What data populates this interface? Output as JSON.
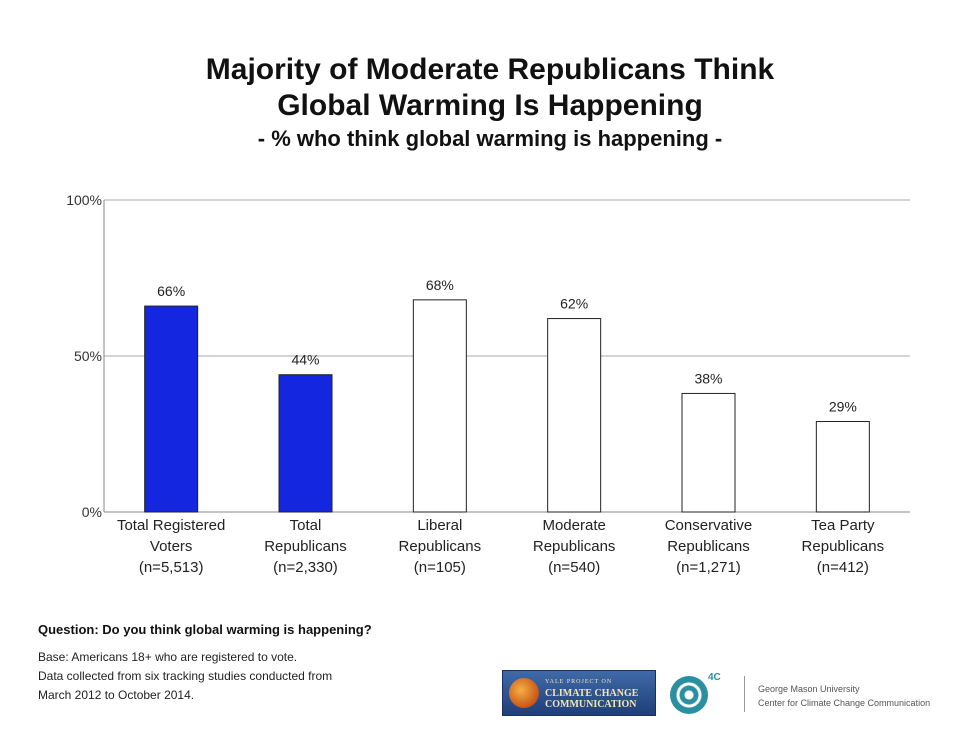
{
  "chart_data": {
    "type": "bar",
    "title_lines": [
      "Majority of Moderate Republicans Think",
      "Global Warming Is Happening"
    ],
    "subtitle": "- % who think global warming is happening -",
    "categories": [
      [
        "Total Registered",
        "Voters",
        "(n=5,513)"
      ],
      [
        "Total",
        "Republicans",
        "(n=2,330)"
      ],
      [
        "Liberal",
        "Republicans",
        "(n=105)"
      ],
      [
        "Moderate",
        "Republicans",
        "(n=540)"
      ],
      [
        "Conservative",
        "Republicans",
        "(n=1,271)"
      ],
      [
        "Tea Party",
        "Republicans",
        "(n=412)"
      ]
    ],
    "values": [
      66,
      44,
      68,
      62,
      38,
      29
    ],
    "data_labels": [
      "66%",
      "44%",
      "68%",
      "62%",
      "38%",
      "29%"
    ],
    "bar_fills": [
      "#1426e0",
      "#1426e0",
      "#ffffff",
      "#ffffff",
      "#ffffff",
      "#ffffff"
    ],
    "ylim": [
      0,
      100
    ],
    "yticks": [
      0,
      50,
      100
    ],
    "ytick_labels": [
      "0%",
      "50%",
      "100%"
    ],
    "grid": true,
    "xlabel": "",
    "ylabel": ""
  },
  "footer": {
    "question": "Question: Do you think global warming is happening?",
    "base_lines": [
      "Base: Americans 18+ who are registered to vote.",
      "Data collected from six tracking studies conducted from",
      "March 2012 to October 2014."
    ]
  },
  "logos": {
    "ycc_small": "YALE PROJECT ON",
    "ycc_line1": "CLIMATE CHANGE",
    "ycc_line2": "COMMUNICATION",
    "mark_4c": "4C",
    "gmu_line1": "George Mason University",
    "gmu_line2": "Center for Climate Change Communication"
  },
  "colors": {
    "accent_bar": "#1426e0",
    "grid": "#aaaaaa"
  }
}
